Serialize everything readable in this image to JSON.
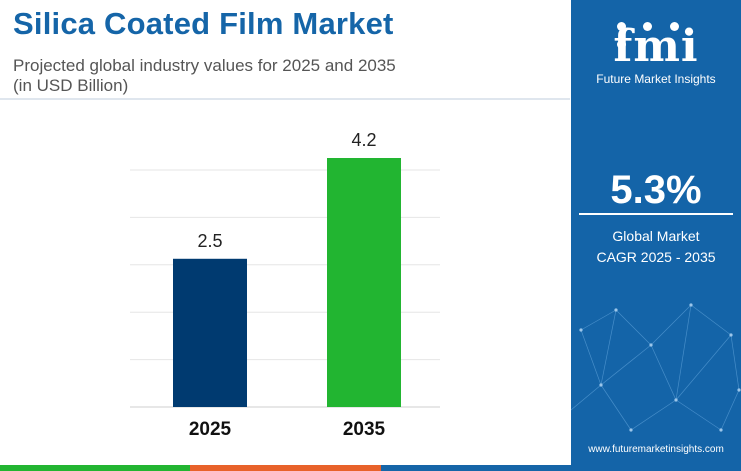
{
  "header": {
    "title": "Silica Coated Film Market",
    "subtitle_line1": "Projected global industry values for 2025 and 2035",
    "subtitle_line2": "(in USD Billion)"
  },
  "chart_data": {
    "type": "bar",
    "categories": [
      "2025",
      "2035"
    ],
    "values": [
      2.5,
      4.2
    ],
    "bar_colors": [
      "#003a70",
      "#22b531"
    ],
    "data_labels": [
      "2.5",
      "4.2"
    ],
    "ylim": [
      0,
      4.2
    ],
    "grid": true,
    "xlabel": "",
    "ylabel": ""
  },
  "panel": {
    "logo_text": "fmi",
    "logo_tagline": "Future Market Insights",
    "cagr_value": "5.3%",
    "cagr_label_line1": "Global Market",
    "cagr_label_line2": "CAGR 2025 - 2035",
    "website": "www.futuremarketinsights.com"
  },
  "colors": {
    "title": "#1565a8",
    "panel_bg": "#1464a8",
    "bar_2025": "#003a70",
    "bar_2035": "#22b531",
    "strip": [
      "#22b531",
      "#e8622a",
      "#1565a8"
    ]
  }
}
